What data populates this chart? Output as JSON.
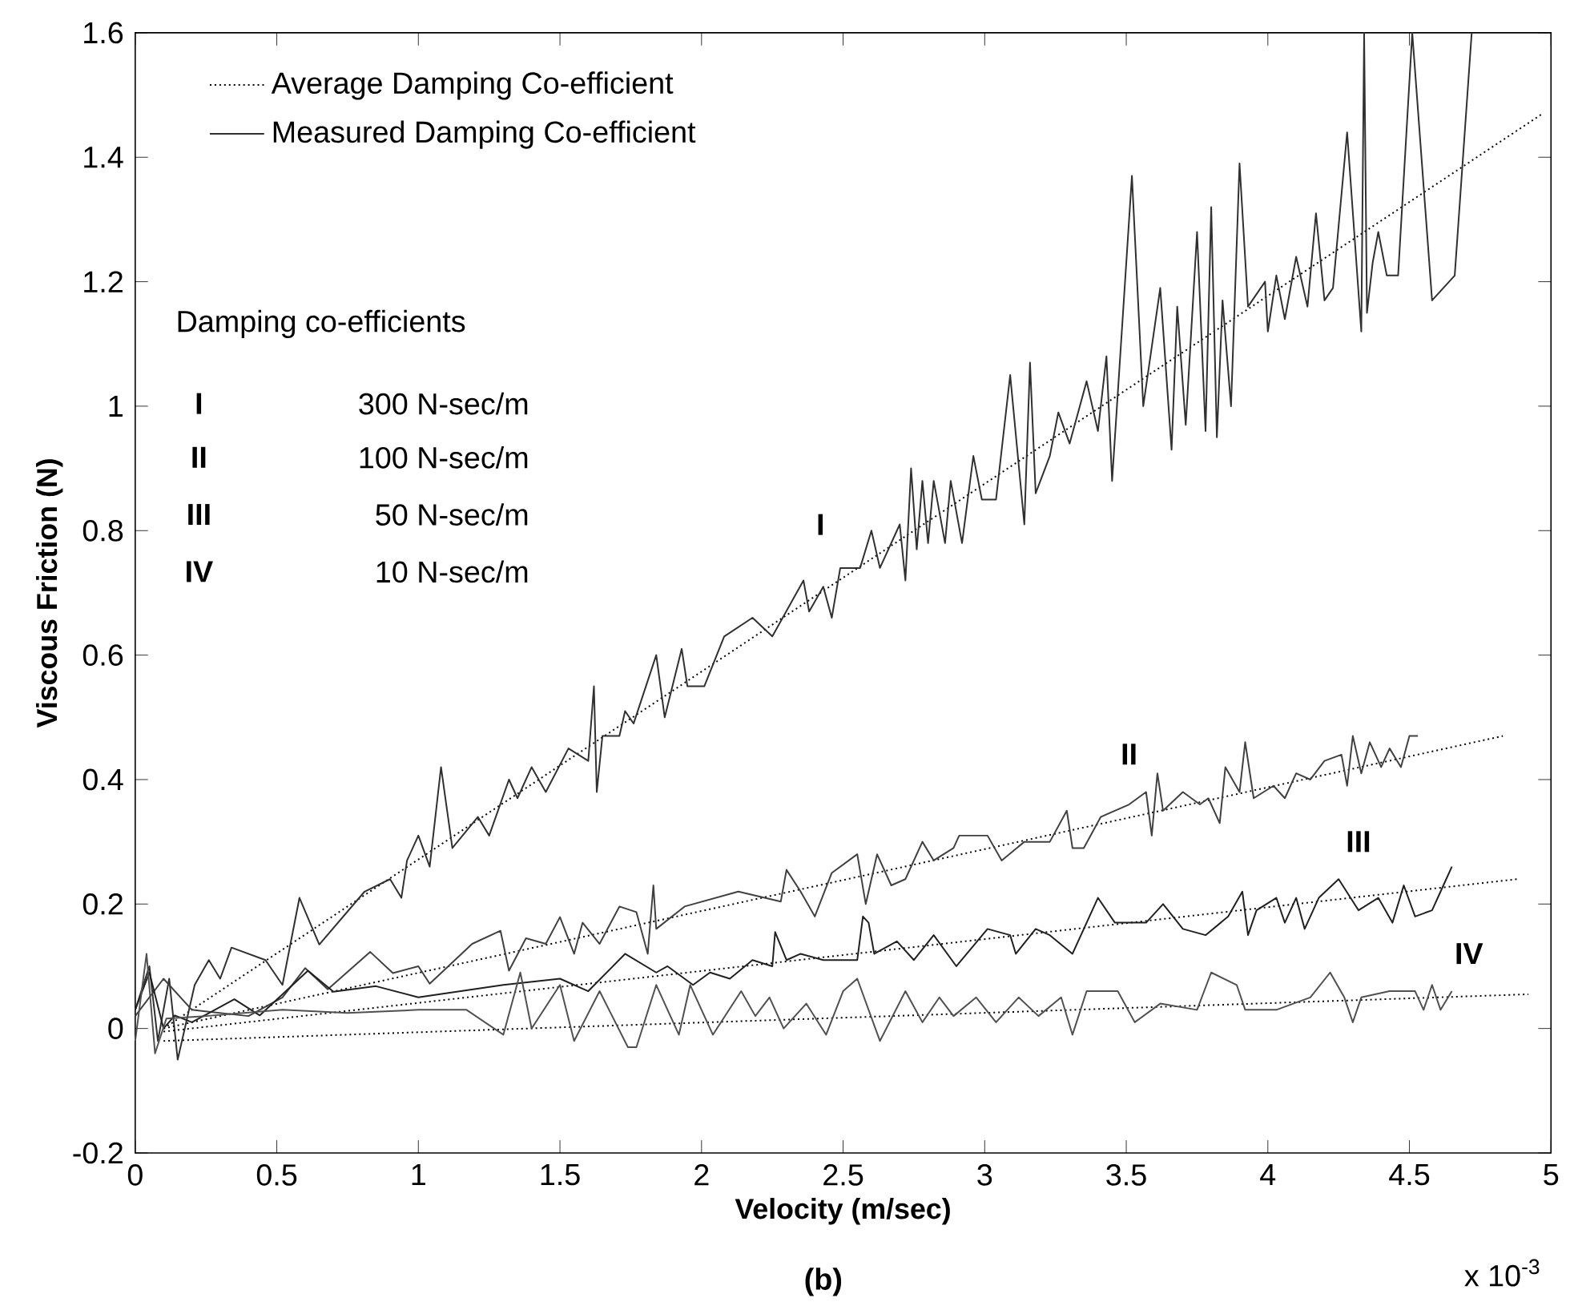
{
  "chart_data": {
    "type": "line",
    "xlabel": "Velocity (m/sec)",
    "ylabel": "Viscous Friction (N)",
    "xlim": [
      0,
      5
    ],
    "ylim": [
      -0.2,
      1.6
    ],
    "xticks": [
      0,
      0.5,
      1,
      1.5,
      2,
      2.5,
      3,
      3.5,
      4,
      4.5,
      5
    ],
    "yticks": [
      -0.2,
      0,
      0.2,
      0.4,
      0.6,
      0.8,
      1,
      1.2,
      1.4,
      1.6
    ],
    "legend": "top left",
    "marker": "none",
    "grid": false,
    "series": [
      {
        "name": "Average Damping Co-efficient",
        "color": "#000000",
        "line_style": "dotted",
        "x": [
          0.1,
          4.97
        ],
        "values": [
          0.0,
          1.47
        ]
      },
      {
        "name": "Measured Damping Co-efficient",
        "color": "#303030",
        "line_style": "solid",
        "x": [
          0,
          0.05,
          0.08,
          0.12,
          0.15,
          0.21,
          0.26,
          0.3,
          0.34,
          0.46,
          0.52,
          0.58,
          0.65,
          0.81,
          0.9,
          0.94,
          0.96,
          1.0,
          1.04,
          1.08,
          1.12,
          1.21,
          1.25,
          1.32,
          1.35,
          1.4,
          1.45,
          1.53,
          1.6,
          1.62,
          1.63,
          1.65,
          1.71,
          1.73,
          1.76,
          1.84,
          1.87,
          1.93,
          1.95,
          2.01,
          2.08,
          2.18,
          2.25,
          2.36,
          2.38,
          2.43,
          2.46,
          2.49,
          2.56,
          2.6,
          2.63,
          2.7,
          2.72,
          2.74,
          2.76,
          2.78,
          2.8,
          2.82,
          2.86,
          2.88,
          2.92,
          2.96,
          2.99,
          3.04,
          3.09,
          3.14,
          3.16,
          3.18,
          3.23,
          3.26,
          3.3,
          3.36,
          3.4,
          3.43,
          3.45,
          3.52,
          3.56,
          3.62,
          3.66,
          3.68,
          3.71,
          3.75,
          3.78,
          3.8,
          3.82,
          3.84,
          3.87,
          3.9,
          3.93,
          3.99,
          4.0,
          4.03,
          4.06,
          4.1,
          4.14,
          4.17,
          4.2,
          4.23,
          4.28,
          4.33,
          4.34,
          4.35,
          4.37,
          4.39,
          4.42,
          4.46,
          4.51,
          4.58,
          4.66,
          4.72
        ],
        "values": [
          0.03,
          0.1,
          -0.02,
          0.08,
          -0.05,
          0.07,
          0.11,
          0.08,
          0.13,
          0.11,
          0.07,
          0.21,
          0.135,
          0.22,
          0.24,
          0.21,
          0.27,
          0.31,
          0.26,
          0.42,
          0.29,
          0.34,
          0.31,
          0.4,
          0.37,
          0.42,
          0.38,
          0.45,
          0.43,
          0.55,
          0.38,
          0.47,
          0.47,
          0.51,
          0.49,
          0.6,
          0.5,
          0.61,
          0.55,
          0.55,
          0.63,
          0.66,
          0.63,
          0.72,
          0.67,
          0.71,
          0.66,
          0.74,
          0.74,
          0.8,
          0.74,
          0.81,
          0.72,
          0.9,
          0.77,
          0.88,
          0.78,
          0.88,
          0.78,
          0.88,
          0.78,
          0.92,
          0.85,
          0.85,
          1.05,
          0.81,
          1.07,
          0.86,
          0.92,
          0.99,
          0.94,
          1.04,
          0.96,
          1.08,
          0.88,
          1.37,
          1.0,
          1.19,
          0.93,
          1.16,
          0.97,
          1.28,
          0.96,
          1.32,
          0.95,
          1.17,
          1.0,
          1.39,
          1.16,
          1.2,
          1.12,
          1.21,
          1.14,
          1.24,
          1.16,
          1.31,
          1.17,
          1.19,
          1.44,
          1.12,
          1.6,
          1.15,
          1.23,
          1.28,
          1.21,
          1.21,
          1.6,
          1.17,
          1.21,
          1.6
        ]
      },
      {
        "color": "#000000",
        "line_style": "dotted",
        "x": [
          0.1,
          4.83
        ],
        "values": [
          0.0,
          0.47
        ]
      },
      {
        "color": "#404040",
        "line_style": "solid",
        "x": [
          0,
          0.1,
          0.2,
          0.4,
          0.52,
          0.6,
          0.68,
          0.83,
          0.91,
          1.0,
          1.04,
          1.19,
          1.29,
          1.32,
          1.38,
          1.45,
          1.5,
          1.55,
          1.58,
          1.64,
          1.71,
          1.77,
          1.81,
          1.83,
          1.84,
          1.94,
          2.13,
          2.28,
          2.3,
          2.35,
          2.4,
          2.46,
          2.55,
          2.58,
          2.62,
          2.67,
          2.72,
          2.78,
          2.82,
          2.89,
          2.91,
          3.01,
          3.06,
          3.14,
          3.23,
          3.29,
          3.31,
          3.35,
          3.41,
          3.51,
          3.57,
          3.59,
          3.61,
          3.63,
          3.7,
          3.76,
          3.79,
          3.83,
          3.85,
          3.9,
          3.92,
          3.95,
          4.02,
          4.06,
          4.1,
          4.15,
          4.2,
          4.26,
          4.28,
          4.3,
          4.33,
          4.36,
          4.4,
          4.43,
          4.47,
          4.5,
          4.53
        ],
        "values": [
          0.02,
          0.08,
          0.03,
          0.02,
          0.05,
          0.097,
          0.063,
          0.123,
          0.089,
          0.1,
          0.072,
          0.136,
          0.157,
          0.093,
          0.145,
          0.136,
          0.179,
          0.12,
          0.17,
          0.136,
          0.196,
          0.187,
          0.12,
          0.23,
          0.16,
          0.196,
          0.22,
          0.204,
          0.255,
          0.22,
          0.18,
          0.25,
          0.28,
          0.2,
          0.28,
          0.23,
          0.24,
          0.3,
          0.27,
          0.29,
          0.31,
          0.31,
          0.27,
          0.3,
          0.3,
          0.35,
          0.29,
          0.29,
          0.34,
          0.36,
          0.38,
          0.31,
          0.41,
          0.35,
          0.38,
          0.36,
          0.37,
          0.33,
          0.42,
          0.38,
          0.46,
          0.37,
          0.39,
          0.37,
          0.41,
          0.4,
          0.43,
          0.44,
          0.39,
          0.47,
          0.41,
          0.46,
          0.42,
          0.45,
          0.42,
          0.47,
          0.47
        ]
      },
      {
        "color": "#000000",
        "line_style": "dotted",
        "x": [
          0.1,
          4.88
        ],
        "values": [
          -0.005,
          0.24
        ]
      },
      {
        "color": "#202020",
        "line_style": "solid",
        "x": [
          0,
          0.05,
          0.1,
          0.14,
          0.2,
          0.35,
          0.44,
          0.61,
          0.7,
          0.85,
          1.0,
          1.3,
          1.5,
          1.6,
          1.73,
          1.84,
          1.88,
          1.97,
          2.03,
          2.1,
          2.18,
          2.25,
          2.26,
          2.3,
          2.35,
          2.43,
          2.49,
          2.55,
          2.57,
          2.59,
          2.61,
          2.69,
          2.75,
          2.82,
          2.9,
          3.01,
          3.09,
          3.11,
          3.18,
          3.23,
          3.31,
          3.4,
          3.46,
          3.57,
          3.63,
          3.7,
          3.78,
          3.86,
          3.91,
          3.93,
          3.96,
          4.03,
          4.06,
          4.1,
          4.13,
          4.18,
          4.25,
          4.32,
          4.39,
          4.44,
          4.48,
          4.52,
          4.58,
          4.62,
          4.65
        ],
        "values": [
          0.03,
          0.09,
          0.0,
          0.021,
          0.01,
          0.047,
          0.021,
          0.093,
          0.059,
          0.068,
          0.05,
          0.07,
          0.08,
          0.06,
          0.12,
          0.09,
          0.1,
          0.07,
          0.09,
          0.08,
          0.11,
          0.1,
          0.155,
          0.11,
          0.12,
          0.11,
          0.11,
          0.11,
          0.18,
          0.17,
          0.12,
          0.14,
          0.11,
          0.15,
          0.1,
          0.16,
          0.15,
          0.12,
          0.16,
          0.15,
          0.12,
          0.21,
          0.17,
          0.17,
          0.2,
          0.16,
          0.15,
          0.18,
          0.22,
          0.15,
          0.19,
          0.21,
          0.17,
          0.21,
          0.16,
          0.21,
          0.24,
          0.19,
          0.21,
          0.17,
          0.23,
          0.18,
          0.19,
          0.23,
          0.26
        ]
      },
      {
        "color": "#000000",
        "line_style": "dotted",
        "x": [
          0.1,
          4.92
        ],
        "values": [
          -0.02,
          0.055
        ]
      },
      {
        "color": "#505050",
        "line_style": "solid",
        "x": [
          0,
          0.04,
          0.07,
          0.11,
          0.25,
          0.52,
          0.75,
          1.0,
          1.17,
          1.3,
          1.36,
          1.4,
          1.5,
          1.55,
          1.64,
          1.74,
          1.77,
          1.84,
          1.92,
          1.96,
          2.04,
          2.14,
          2.19,
          2.24,
          2.29,
          2.37,
          2.44,
          2.5,
          2.55,
          2.63,
          2.72,
          2.78,
          2.84,
          2.89,
          2.97,
          3.04,
          3.12,
          3.19,
          3.27,
          3.31,
          3.36,
          3.47,
          3.53,
          3.62,
          3.75,
          3.8,
          3.89,
          3.92,
          4.03,
          4.15,
          4.22,
          4.27,
          4.3,
          4.33,
          4.43,
          4.52,
          4.55,
          4.58,
          4.61,
          4.65
        ],
        "values": [
          -0.02,
          0.12,
          -0.04,
          0.016,
          0.02,
          0.03,
          0.025,
          0.03,
          0.03,
          -0.01,
          0.09,
          0.0,
          0.07,
          -0.02,
          0.06,
          -0.03,
          -0.03,
          0.07,
          -0.01,
          0.07,
          -0.01,
          0.06,
          0.02,
          0.05,
          0.0,
          0.04,
          -0.01,
          0.06,
          0.08,
          -0.02,
          0.06,
          0.01,
          0.05,
          0.02,
          0.05,
          0.01,
          0.05,
          0.02,
          0.05,
          -0.01,
          0.06,
          0.06,
          0.01,
          0.04,
          0.03,
          0.09,
          0.07,
          0.03,
          0.03,
          0.05,
          0.09,
          0.05,
          0.01,
          0.05,
          0.06,
          0.06,
          0.03,
          0.07,
          0.03,
          0.06
        ]
      }
    ],
    "annotations": [
      "Damping co-efficients",
      "I",
      "300 N-sec/m",
      "II",
      "100 N-sec/m",
      "III",
      "50 N-sec/m",
      "IV",
      "10 N-sec/m",
      "I",
      "II",
      "III",
      "IV",
      "x 10$^{-3}$",
      "(b)"
    ]
  }
}
